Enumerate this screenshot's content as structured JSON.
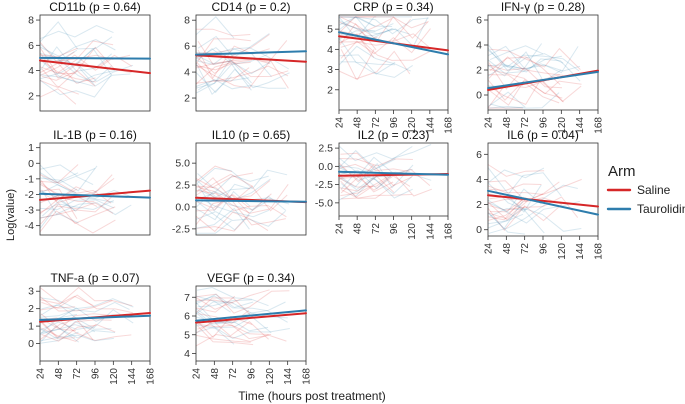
{
  "figure": {
    "ylabel": "Log(value)",
    "xlabel": "Time (hours post treatment)",
    "legend": {
      "title": "Arm",
      "position": "right",
      "entries": [
        {
          "name": "Saline",
          "color": "#d62728"
        },
        {
          "name": "Taurolidine",
          "color": "#2e7dad"
        }
      ]
    }
  },
  "chart_data": [
    {
      "type": "line",
      "title": "CD11b (p = 0.64)",
      "panel": 1,
      "x_ticks": [],
      "yticks": [
        "2",
        "4",
        "6",
        "8"
      ],
      "ylim": [
        0.8,
        8.4
      ],
      "xlim": [
        24,
        168
      ],
      "series": [
        {
          "name": "Saline",
          "x": [
            24,
            168
          ],
          "y": [
            4.8,
            3.8
          ]
        },
        {
          "name": "Taurolidine",
          "x": [
            24,
            168
          ],
          "y": [
            5.0,
            4.95
          ]
        }
      ]
    },
    {
      "type": "line",
      "title": "CD14 (p = 0.2)",
      "panel": 2,
      "x_ticks": [],
      "yticks": [
        "2",
        "4",
        "6",
        "8"
      ],
      "ylim": [
        1.0,
        8.4
      ],
      "xlim": [
        24,
        168
      ],
      "series": [
        {
          "name": "Saline",
          "x": [
            24,
            168
          ],
          "y": [
            5.3,
            4.8
          ]
        },
        {
          "name": "Taurolidine",
          "x": [
            24,
            168
          ],
          "y": [
            5.35,
            5.6
          ]
        }
      ]
    },
    {
      "type": "line",
      "title": "CRP (p = 0.34)",
      "panel": 3,
      "x_ticks": [
        "24",
        "48",
        "72",
        "96",
        "120",
        "144",
        "168"
      ],
      "yticks": [
        "2",
        "3",
        "4",
        "5"
      ],
      "ylim": [
        1.0,
        5.7
      ],
      "xlim": [
        24,
        168
      ],
      "series": [
        {
          "name": "Saline",
          "x": [
            24,
            168
          ],
          "y": [
            4.65,
            3.95
          ]
        },
        {
          "name": "Taurolidine",
          "x": [
            24,
            168
          ],
          "y": [
            4.85,
            3.75
          ]
        }
      ]
    },
    {
      "type": "line",
      "title": "IFN-γ (p = 0.28)",
      "panel": 4,
      "x_ticks": [
        "24",
        "48",
        "72",
        "96",
        "120",
        "144",
        "168"
      ],
      "yticks": [
        "0",
        "2",
        "4",
        "6"
      ],
      "ylim": [
        -1.2,
        6.4
      ],
      "xlim": [
        24,
        168
      ],
      "series": [
        {
          "name": "Saline",
          "x": [
            24,
            168
          ],
          "y": [
            0.4,
            1.95
          ]
        },
        {
          "name": "Taurolidine",
          "x": [
            24,
            168
          ],
          "y": [
            0.55,
            1.85
          ]
        }
      ]
    },
    {
      "type": "line",
      "title": "IL-1B (p = 0.16)",
      "panel": 5,
      "x_ticks": [],
      "yticks": [
        "-4",
        "-3",
        "-2",
        "-1",
        "0",
        "1"
      ],
      "ylim": [
        -4.6,
        1.3
      ],
      "xlim": [
        24,
        168
      ],
      "series": [
        {
          "name": "Saline",
          "x": [
            24,
            168
          ],
          "y": [
            -2.35,
            -1.75
          ]
        },
        {
          "name": "Taurolidine",
          "x": [
            24,
            168
          ],
          "y": [
            -1.95,
            -2.2
          ]
        }
      ]
    },
    {
      "type": "line",
      "title": "IL10 (p = 0.65)",
      "panel": 6,
      "x_ticks": [],
      "yticks": [
        "-2.5",
        "0.0",
        "2.5",
        "5.0"
      ],
      "ylim": [
        -3.2,
        7.3
      ],
      "xlim": [
        24,
        168
      ],
      "series": [
        {
          "name": "Saline",
          "x": [
            24,
            168
          ],
          "y": [
            1.05,
            0.55
          ]
        },
        {
          "name": "Taurolidine",
          "x": [
            24,
            168
          ],
          "y": [
            0.75,
            0.6
          ]
        }
      ]
    },
    {
      "type": "line",
      "title": "IL2 (p = 0.23)",
      "panel": 7,
      "x_ticks": [
        "24",
        "48",
        "72",
        "96",
        "120",
        "144",
        "168"
      ],
      "yticks": [
        "-5.0",
        "-2.5",
        "0.0",
        "2.5"
      ],
      "ylim": [
        -6.8,
        3.2
      ],
      "xlim": [
        24,
        168
      ],
      "series": [
        {
          "name": "Saline",
          "x": [
            24,
            168
          ],
          "y": [
            -1.3,
            -1.05
          ]
        },
        {
          "name": "Taurolidine",
          "x": [
            24,
            168
          ],
          "y": [
            -0.75,
            -1.15
          ]
        }
      ]
    },
    {
      "type": "line",
      "title": "IL6 (p = 0.04)",
      "panel": 8,
      "x_ticks": [
        "24",
        "48",
        "72",
        "96",
        "120",
        "144",
        "168"
      ],
      "yticks": [
        "0",
        "2",
        "4",
        "6"
      ],
      "ylim": [
        -0.5,
        6.9
      ],
      "xlim": [
        24,
        168
      ],
      "series": [
        {
          "name": "Saline",
          "x": [
            24,
            168
          ],
          "y": [
            2.75,
            1.85
          ]
        },
        {
          "name": "Taurolidine",
          "x": [
            24,
            168
          ],
          "y": [
            3.1,
            1.2
          ]
        }
      ]
    },
    {
      "type": "line",
      "title": "TNF-a (p = 0.07)",
      "panel": 9,
      "x_ticks": [
        "24",
        "48",
        "72",
        "96",
        "120",
        "144",
        "168"
      ],
      "yticks": [
        "0",
        "1",
        "2",
        "3"
      ],
      "ylim": [
        -1.0,
        3.3
      ],
      "xlim": [
        24,
        168
      ],
      "series": [
        {
          "name": "Saline",
          "x": [
            24,
            168
          ],
          "y": [
            1.25,
            1.75
          ]
        },
        {
          "name": "Taurolidine",
          "x": [
            24,
            168
          ],
          "y": [
            1.35,
            1.6
          ]
        }
      ]
    },
    {
      "type": "line",
      "title": "VEGF (p = 0.34)",
      "panel": 10,
      "x_ticks": [
        "24",
        "48",
        "72",
        "96",
        "120",
        "144",
        "168"
      ],
      "yticks": [
        "4",
        "5",
        "6",
        "7"
      ],
      "ylim": [
        3.6,
        7.6
      ],
      "xlim": [
        24,
        168
      ],
      "series": [
        {
          "name": "Saline",
          "x": [
            24,
            168
          ],
          "y": [
            5.65,
            6.15
          ]
        },
        {
          "name": "Taurolidine",
          "x": [
            24,
            168
          ],
          "y": [
            5.75,
            6.3
          ]
        }
      ]
    }
  ]
}
